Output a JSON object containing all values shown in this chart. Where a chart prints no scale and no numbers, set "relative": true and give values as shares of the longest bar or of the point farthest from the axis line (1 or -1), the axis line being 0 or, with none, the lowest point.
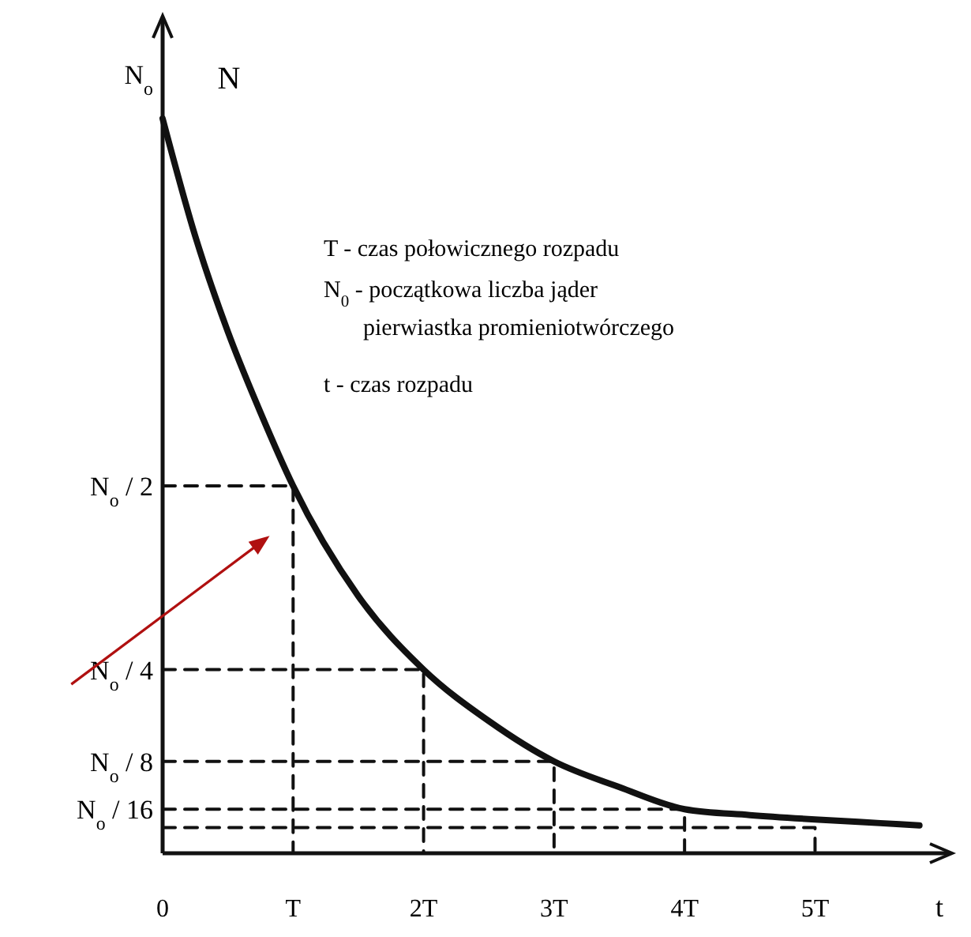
{
  "chart_data": {
    "type": "line",
    "relative": true,
    "ylabel": "N",
    "xlabel": "t",
    "xlim": [
      0,
      6.05
    ],
    "xticks": [
      {
        "value": 0,
        "label": "0"
      },
      {
        "value": 1,
        "label": "T"
      },
      {
        "value": 2,
        "label": "2T"
      },
      {
        "value": 3,
        "label": "3T"
      },
      {
        "value": 4,
        "label": "4T"
      },
      {
        "value": 5,
        "label": "5T"
      }
    ],
    "grid": false,
    "marker": "none",
    "series": [
      {
        "color": "#111111",
        "line_style": "solid",
        "x": [
          0,
          0.25,
          0.5,
          0.75,
          1,
          1.5,
          2,
          2.5,
          3,
          3.5,
          4,
          4.5,
          5,
          5.5,
          5.8
        ],
        "values": [
          1,
          0.84,
          0.71,
          0.6,
          0.5,
          0.35,
          0.25,
          0.18,
          0.125,
          0.09,
          0.06,
          0.052,
          0.046,
          0.041,
          0.038
        ]
      },
      {
        "color": "#111111",
        "line_style": "dashed",
        "x": [
          0,
          1,
          1
        ],
        "values": [
          0.5,
          0.5,
          0
        ]
      },
      {
        "color": "#111111",
        "line_style": "dashed",
        "x": [
          0,
          2,
          2
        ],
        "values": [
          0.25,
          0.25,
          0
        ]
      },
      {
        "color": "#111111",
        "line_style": "dashed",
        "x": [
          0,
          3,
          3
        ],
        "values": [
          0.125,
          0.125,
          0
        ]
      },
      {
        "color": "#111111",
        "line_style": "dashed",
        "x": [
          0,
          4,
          4
        ],
        "values": [
          0.06,
          0.06,
          0
        ]
      },
      {
        "color": "#111111",
        "line_style": "dashed",
        "x": [
          0,
          5,
          5
        ],
        "values": [
          0.035,
          0.035,
          0
        ]
      }
    ],
    "annotations": [
      "N$_{o}$",
      "N$_{o}$ / 2",
      "N$_{o}$ / 4",
      "N$_{o}$ / 8",
      "N$_{o}$ / 16",
      "T -  czas połowicznego rozpadu",
      "N$_{0}$ - początkowa liczba jąder",
      "pierwiastka promieniotwórczego",
      "t  -  czas rozpadu"
    ]
  }
}
